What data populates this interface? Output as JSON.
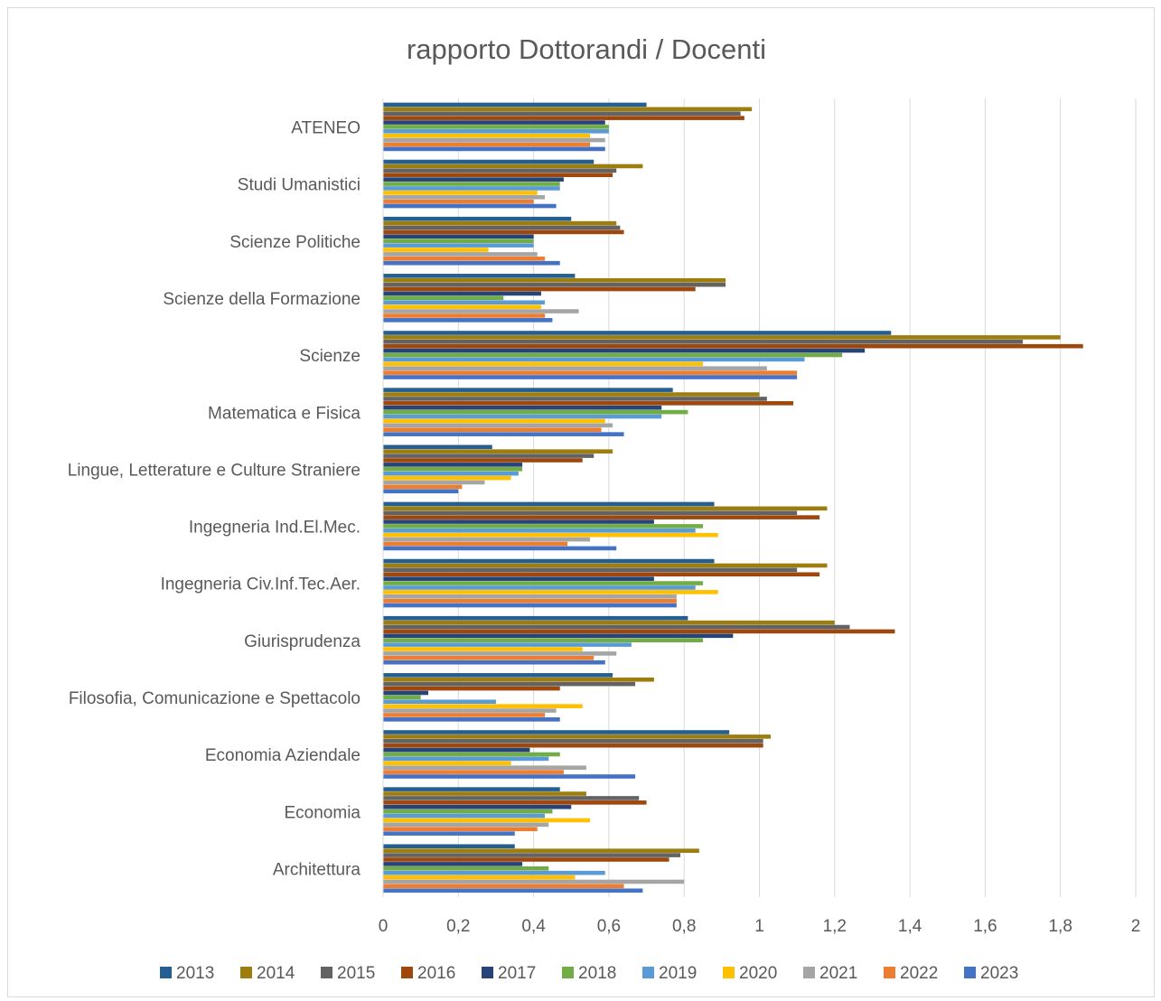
{
  "chart_data": {
    "type": "bar",
    "orientation": "horizontal",
    "title": "rapporto Dottorandi / Docenti",
    "xlabel": "",
    "ylabel": "",
    "xlim": [
      0,
      2
    ],
    "x_ticks": [
      "0",
      "0,2",
      "0,4",
      "0,6",
      "0,8",
      "1",
      "1,2",
      "1,4",
      "1,6",
      "1,8",
      "2"
    ],
    "grid": "vertical",
    "legend_position": "bottom",
    "categories": [
      "ATENEO",
      "Studi Umanistici",
      "Scienze Politiche",
      "Scienze della Formazione",
      "Scienze",
      "Matematica e Fisica",
      "Lingue, Letterature e Culture Straniere",
      "Ingegneria Ind.El.Mec.",
      "Ingegneria Civ.Inf.Tec.Aer.",
      "Giurisprudenza",
      "Filosofia, Comunicazione e Spettacolo",
      "Economia Aziendale",
      "Economia",
      "Architettura"
    ],
    "series": [
      {
        "name": "2013",
        "color": "#255e91",
        "values": [
          0.7,
          0.56,
          0.5,
          0.51,
          1.35,
          0.77,
          0.29,
          0.88,
          0.88,
          0.81,
          0.61,
          0.92,
          0.47,
          0.35
        ]
      },
      {
        "name": "2014",
        "color": "#9e7d0f",
        "values": [
          0.98,
          0.69,
          0.62,
          0.91,
          1.8,
          1.0,
          0.61,
          1.18,
          1.18,
          1.2,
          0.72,
          1.03,
          0.54,
          0.84
        ]
      },
      {
        "name": "2015",
        "color": "#636363",
        "values": [
          0.95,
          0.62,
          0.63,
          0.91,
          1.7,
          1.02,
          0.56,
          1.1,
          1.1,
          1.24,
          0.67,
          1.01,
          0.68,
          0.79
        ]
      },
      {
        "name": "2016",
        "color": "#9e480e",
        "values": [
          0.96,
          0.61,
          0.64,
          0.83,
          1.86,
          1.09,
          0.53,
          1.16,
          1.16,
          1.36,
          0.47,
          1.01,
          0.7,
          0.76
        ]
      },
      {
        "name": "2017",
        "color": "#264478",
        "values": [
          0.59,
          0.48,
          0.4,
          0.42,
          1.28,
          0.74,
          0.37,
          0.72,
          0.72,
          0.93,
          0.12,
          0.39,
          0.5,
          0.37
        ]
      },
      {
        "name": "2018",
        "color": "#70ad47",
        "values": [
          0.6,
          0.47,
          0.4,
          0.32,
          1.22,
          0.81,
          0.37,
          0.85,
          0.85,
          0.85,
          0.1,
          0.47,
          0.45,
          0.44
        ]
      },
      {
        "name": "2019",
        "color": "#5b9bd5",
        "values": [
          0.6,
          0.47,
          0.4,
          0.43,
          1.12,
          0.74,
          0.36,
          0.83,
          0.83,
          0.66,
          0.3,
          0.44,
          0.43,
          0.59
        ]
      },
      {
        "name": "2020",
        "color": "#ffc000",
        "values": [
          0.55,
          0.41,
          0.28,
          0.42,
          0.85,
          0.59,
          0.34,
          0.89,
          0.89,
          0.53,
          0.53,
          0.34,
          0.55,
          0.51
        ]
      },
      {
        "name": "2021",
        "color": "#a5a5a5",
        "values": [
          0.59,
          0.43,
          0.41,
          0.52,
          1.02,
          0.61,
          0.27,
          0.55,
          0.78,
          0.62,
          0.46,
          0.54,
          0.44,
          0.8
        ]
      },
      {
        "name": "2022",
        "color": "#ed7d31",
        "values": [
          0.55,
          0.4,
          0.43,
          0.43,
          1.1,
          0.58,
          0.21,
          0.49,
          0.78,
          0.56,
          0.43,
          0.48,
          0.41,
          0.64
        ]
      },
      {
        "name": "2023",
        "color": "#4472c4",
        "values": [
          0.59,
          0.46,
          0.47,
          0.45,
          1.1,
          0.64,
          0.2,
          0.62,
          0.78,
          0.59,
          0.47,
          0.67,
          0.35,
          0.69
        ]
      }
    ]
  }
}
